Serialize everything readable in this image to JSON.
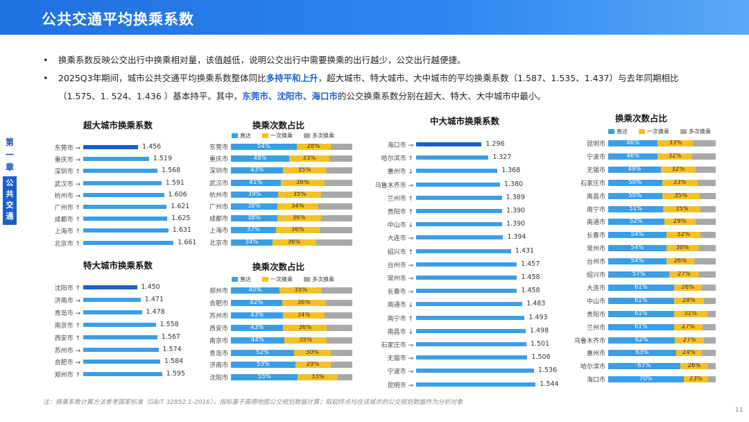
{
  "header": {
    "title": "公共交通平均换乘系数"
  },
  "bullets": {
    "b1": "换乘系数反映公交出行中换乘相对量，该值越低，说明公交出行中需要换乘的出行越少，公交出行越便捷。",
    "b2_part1": "2025Q3年期间，城市公共交通平均换乘系数整体同比",
    "b2_hl1": "多持平和上升",
    "b2_part2": "，超大城市、特大城市、大中城市的平均换乘系数（1.587、1.535、1.437）与去年同期相比",
    "b2_part3": "（1.575、1. 524、1.436 ）基本持平。其中，",
    "b2_hl2": "东莞市、沈阳市、海口市",
    "b2_part4": "的公交换乘系数分别在超大、特大、大中城市中最小。"
  },
  "sidebar": {
    "chapter": "第一章",
    "section": "公共交通"
  },
  "legend": {
    "direct": "直达",
    "once": "一次换乘",
    "multi": "多次换乘"
  },
  "colors": {
    "direct": "#3a9ee6",
    "once": "#f5c024",
    "multi": "#a8a8a8",
    "top": "#1a5fd0"
  },
  "chart_data": [
    {
      "id": "mega_coef",
      "type": "bar",
      "title": "超大城市换乘系数",
      "categories": [
        "东莞市",
        "重庆市",
        "深圳市",
        "武汉市",
        "杭州市",
        "广州市",
        "成都市",
        "上海市",
        "北京市"
      ],
      "trend": [
        "→",
        "→",
        "↑",
        "→",
        "→",
        "↑",
        "↑",
        "↑",
        "↑"
      ],
      "values": [
        1.456,
        1.519,
        1.568,
        1.591,
        1.606,
        1.621,
        1.625,
        1.631,
        1.661
      ],
      "labels": [
        "1.456",
        "1.519",
        "1.568",
        "1.591",
        "1.606",
        "1.621",
        "1.625",
        "1.631",
        "1.661"
      ]
    },
    {
      "id": "mega_share",
      "type": "bar",
      "title": "换乘次数占比",
      "stacked": true,
      "categories": [
        "东莞市",
        "重庆市",
        "深圳市",
        "武汉市",
        "杭州市",
        "广州市",
        "成都市",
        "上海市",
        "北京市"
      ],
      "series": [
        {
          "name": "直达",
          "values": [
            54,
            48,
            43,
            41,
            39,
            38,
            38,
            37,
            34
          ]
        },
        {
          "name": "一次换乘",
          "values": [
            28,
            33,
            35,
            36,
            35,
            34,
            36,
            36,
            36
          ]
        },
        {
          "name": "多次换乘",
          "values": [
            18,
            19,
            22,
            23,
            26,
            28,
            26,
            27,
            30
          ]
        }
      ]
    },
    {
      "id": "large_coef",
      "type": "bar",
      "title": "特大城市换乘系数",
      "categories": [
        "沈阳市",
        "济南市",
        "青岛市",
        "南京市",
        "西安市",
        "苏州市",
        "合肥市",
        "郑州市"
      ],
      "trend": [
        "↑",
        "→",
        "→",
        "↑",
        "↑",
        "→",
        "→",
        "↑"
      ],
      "values": [
        1.45,
        1.471,
        1.478,
        1.558,
        1.567,
        1.574,
        1.584,
        1.595
      ],
      "labels": [
        "1.450",
        "1.471",
        "1.478",
        "1.558",
        "1.567",
        "1.574",
        "1.584",
        "1.595"
      ]
    },
    {
      "id": "large_share",
      "type": "bar",
      "title": "换乘次数占比",
      "stacked": true,
      "categories": [
        "郑州市",
        "合肥市",
        "苏州市",
        "西安市",
        "南京市",
        "青岛市",
        "济南市",
        "沈阳市"
      ],
      "series": [
        {
          "name": "直达",
          "values": [
            40,
            42,
            43,
            43,
            44,
            52,
            53,
            55
          ]
        },
        {
          "name": "一次换乘",
          "values": [
            35,
            36,
            34,
            36,
            35,
            30,
            29,
            33
          ]
        },
        {
          "name": "多次换乘",
          "values": [
            25,
            22,
            23,
            21,
            21,
            18,
            18,
            12
          ]
        }
      ]
    },
    {
      "id": "mid_coef",
      "type": "bar",
      "title": "中大城市换乘系数",
      "categories": [
        "海口市",
        "哈尔滨市",
        "惠州市",
        "乌鲁木齐市",
        "兰州市",
        "贵阳市",
        "中山市",
        "大连市",
        "绍兴市",
        "台州市",
        "常州市",
        "长春市",
        "南通市",
        "南宁市",
        "南昌市",
        "石家庄市",
        "无锡市",
        "宁波市",
        "昆明市"
      ],
      "trend": [
        "→",
        "↑",
        "↓",
        "→",
        "↑",
        "↑",
        "↓",
        "→",
        "↑",
        "→",
        "→",
        "→",
        "↓",
        "↑",
        "↓",
        "→",
        "→",
        "→",
        "→"
      ],
      "values": [
        1.296,
        1.327,
        1.368,
        1.38,
        1.389,
        1.39,
        1.39,
        1.394,
        1.431,
        1.457,
        1.458,
        1.458,
        1.483,
        1.493,
        1.498,
        1.501,
        1.506,
        1.536,
        1.544
      ],
      "labels": [
        "1.296",
        "1.327",
        "1.368",
        "1.380",
        "1.389",
        "1.390",
        "1.390",
        "1.394",
        "1.431",
        "1.457",
        "1.458",
        "1.458",
        "1.483",
        "1.493",
        "1.498",
        "1.501",
        "1.506",
        "1.536",
        "1.544"
      ]
    },
    {
      "id": "mid_share",
      "type": "bar",
      "title": "换乘次数占比",
      "stacked": true,
      "categories": [
        "昆明市",
        "宁波市",
        "无锡市",
        "石家庄市",
        "南昌市",
        "南宁市",
        "南通市",
        "长春市",
        "常州市",
        "台州市",
        "绍兴市",
        "大连市",
        "中山市",
        "贵阳市",
        "兰州市",
        "乌鲁木齐市",
        "惠州市",
        "哈尔滨市",
        "海口市"
      ],
      "series": [
        {
          "name": "直达",
          "values": [
            46,
            46,
            49,
            50,
            50,
            51,
            52,
            54,
            54,
            54,
            57,
            61,
            61,
            61,
            61,
            62,
            63,
            67,
            70
          ]
        },
        {
          "name": "一次换乘",
          "values": [
            33,
            32,
            32,
            33,
            35,
            35,
            29,
            32,
            30,
            26,
            27,
            26,
            28,
            31,
            27,
            27,
            24,
            26,
            23
          ]
        },
        {
          "name": "多次换乘",
          "values": [
            21,
            22,
            19,
            17,
            15,
            14,
            19,
            14,
            16,
            20,
            16,
            13,
            11,
            8,
            12,
            11,
            13,
            7,
            7
          ]
        }
      ]
    }
  ],
  "footnote": "注：换乘系数计算方法参考国家标准（GB/T 32852.1-2016），指标基于高德地图公交规划数据计算；取起终点均在该城市的公交规划数据作为分析对象",
  "page_number": "11"
}
